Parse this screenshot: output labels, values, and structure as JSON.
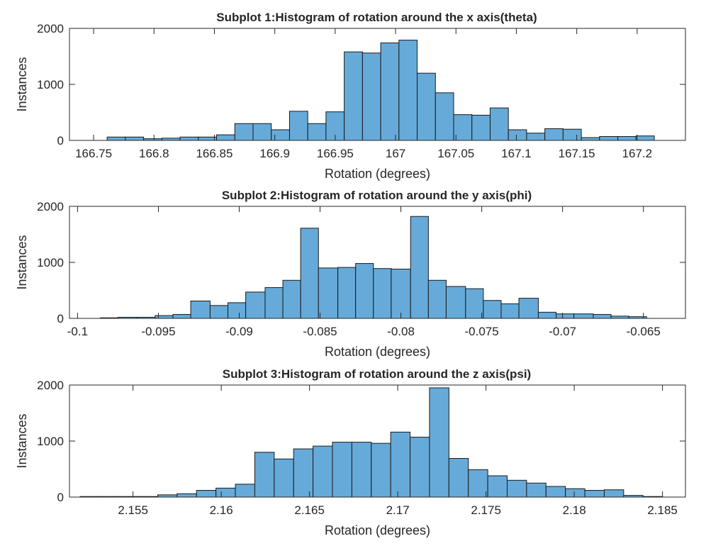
{
  "chart_data": [
    {
      "type": "bar",
      "title": "Subplot 1:Histogram of rotation around the x axis(theta)",
      "xlabel": "Rotation (degrees)",
      "ylabel": "Instances",
      "xlim": [
        166.73,
        167.24
      ],
      "ylim": [
        0,
        2000
      ],
      "xticks": [
        166.75,
        166.8,
        166.85,
        166.9,
        166.95,
        167,
        167.05,
        167.1,
        167.15,
        167.2
      ],
      "xtick_labels": [
        "166.75",
        "166.8",
        "166.85",
        "166.9",
        "166.95",
        "167",
        "167.05",
        "167.1",
        "167.15",
        "167.2"
      ],
      "yticks": [
        0,
        1000,
        2000
      ],
      "ytick_labels": [
        "0",
        "1000",
        "2000"
      ],
      "bin_edges": [
        166.7612,
        166.7763,
        166.7914,
        166.8065,
        166.8216,
        166.8367,
        166.8518,
        166.8669,
        166.882,
        166.8971,
        166.9122,
        166.9273,
        166.9424,
        166.9575,
        166.9726,
        166.9877,
        167.0028,
        167.0179,
        167.033,
        167.0481,
        167.0632,
        167.0783,
        167.0934,
        167.1085,
        167.1236,
        167.1387,
        167.1538,
        167.1689,
        167.184,
        167.1991,
        167.2142
      ],
      "values": [
        60,
        60,
        30,
        40,
        60,
        60,
        100,
        300,
        300,
        190,
        520,
        300,
        510,
        1580,
        1560,
        1740,
        1790,
        1200,
        850,
        460,
        450,
        580,
        190,
        130,
        210,
        200,
        50,
        70,
        70,
        80
      ],
      "color": "#66aad9",
      "grid": false
    },
    {
      "type": "bar",
      "title": "Subplot 2:Histogram of rotation around the y axis(phi)",
      "xlabel": "Rotation (degrees)",
      "ylabel": "Instances",
      "xlim": [
        -0.1005,
        -0.0624
      ],
      "ylim": [
        0,
        2000
      ],
      "xticks": [
        -0.1,
        -0.095,
        -0.09,
        -0.085,
        -0.08,
        -0.075,
        -0.07,
        -0.065
      ],
      "xtick_labels": [
        "-0.1",
        "-0.095",
        "-0.09",
        "-0.085",
        "-0.08",
        "-0.075",
        "-0.07",
        "-0.065"
      ],
      "yticks": [
        0,
        1000,
        2000
      ],
      "ytick_labels": [
        "0",
        "1000",
        "2000"
      ],
      "bin_edges": [
        -0.0986,
        -0.0975,
        -0.0963,
        -0.0952,
        -0.0941,
        -0.093,
        -0.0918,
        -0.0907,
        -0.0896,
        -0.0884,
        -0.0873,
        -0.0862,
        -0.0851,
        -0.0839,
        -0.0828,
        -0.0817,
        -0.0806,
        -0.0794,
        -0.0783,
        -0.0772,
        -0.076,
        -0.0749,
        -0.0738,
        -0.0727,
        -0.0715,
        -0.0704,
        -0.0693,
        -0.0681,
        -0.067,
        -0.0659,
        -0.0648,
        -0.0636
      ],
      "values": [
        10,
        20,
        20,
        50,
        70,
        310,
        230,
        280,
        470,
        550,
        680,
        1610,
        900,
        910,
        980,
        890,
        880,
        1820,
        680,
        570,
        530,
        320,
        260,
        360,
        110,
        80,
        80,
        70,
        40,
        30,
        0
      ],
      "color": "#66aad9",
      "grid": false
    },
    {
      "type": "bar",
      "title": "Subplot 3:Histogram of rotation around the z axis(psi)",
      "xlabel": "Rotation (degrees)",
      "ylabel": "Instances",
      "xlim": [
        2.1514,
        2.1863
      ],
      "ylim": [
        0,
        2000
      ],
      "xticks": [
        2.155,
        2.16,
        2.165,
        2.17,
        2.175,
        2.18,
        2.185
      ],
      "xtick_labels": [
        "2.155",
        "2.16",
        "2.165",
        "2.17",
        "2.175",
        "2.18",
        "2.185"
      ],
      "yticks": [
        0,
        1000,
        2000
      ],
      "ytick_labels": [
        "0",
        "1000",
        "2000"
      ],
      "bin_edges": [
        2.152,
        2.1531,
        2.1542,
        2.1553,
        2.1564,
        2.1575,
        2.1586,
        2.1597,
        2.1608,
        2.1619,
        2.163,
        2.1641,
        2.1652,
        2.1663,
        2.1674,
        2.1685,
        2.1696,
        2.1707,
        2.1718,
        2.1729,
        2.174,
        2.1751,
        2.1762,
        2.1773,
        2.1784,
        2.1795,
        2.1806,
        2.1817,
        2.1828,
        2.1839,
        2.185
      ],
      "values": [
        10,
        10,
        10,
        10,
        40,
        60,
        120,
        160,
        230,
        800,
        680,
        860,
        910,
        980,
        980,
        960,
        1160,
        1070,
        1950,
        690,
        490,
        380,
        300,
        250,
        190,
        150,
        120,
        130,
        30,
        10
      ],
      "color": "#66aad9",
      "grid": false
    }
  ]
}
